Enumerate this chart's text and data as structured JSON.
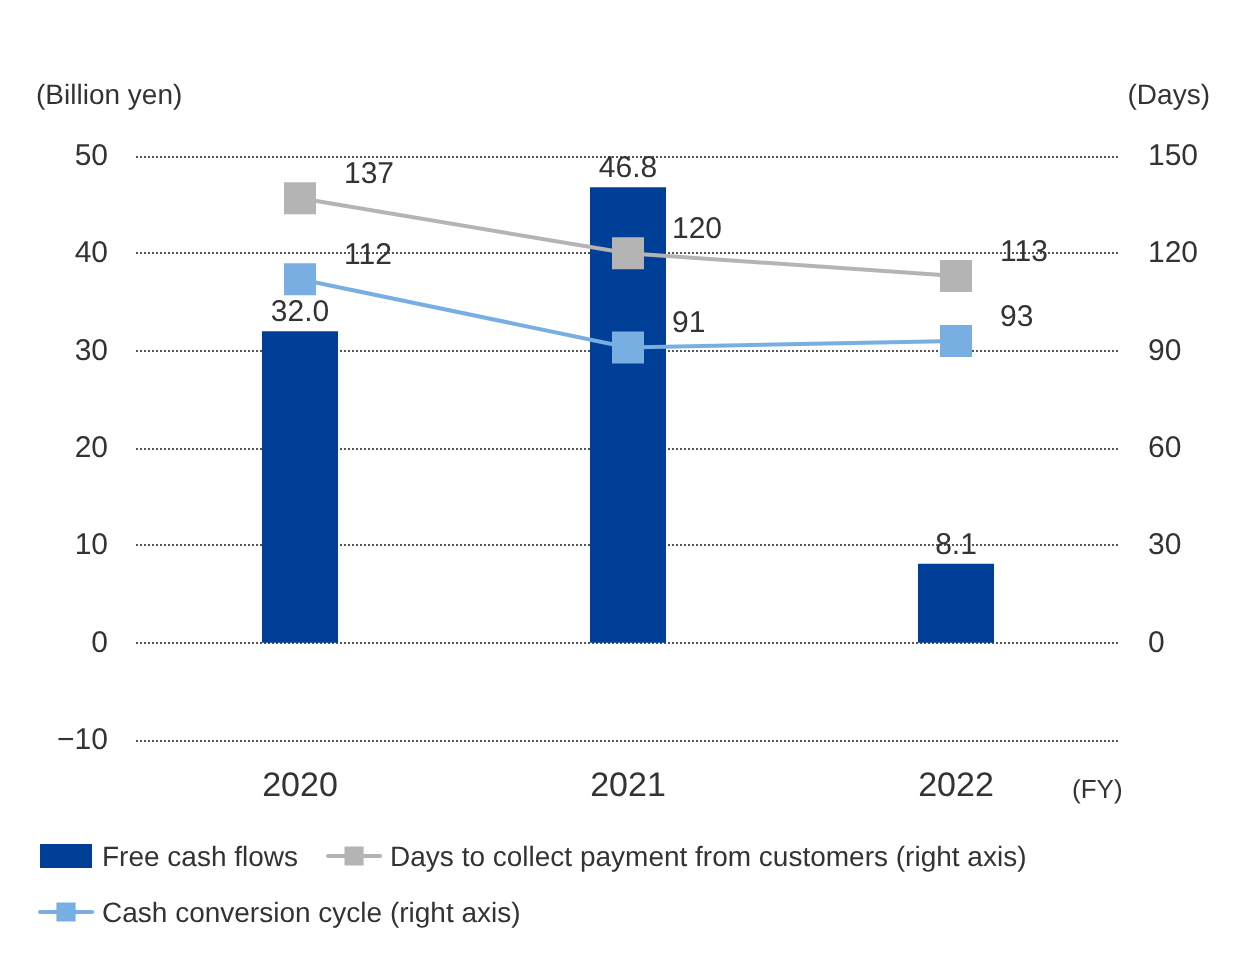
{
  "chart_data": {
    "type": "bar",
    "ylabel": "(Billion yen)",
    "y2label": "(Days)",
    "xlabel": "(FY)",
    "categories": [
      "2020",
      "2021",
      "2022"
    ],
    "series": [
      {
        "name": "Free cash flows",
        "color": "#003f98",
        "values": [
          32.0,
          46.8,
          8.1
        ],
        "value_labels": [
          "32.0",
          "46.8",
          "8.1"
        ]
      },
      {
        "name": "Days to collect payment from customers (right axis)",
        "type": "line",
        "axis": "y2",
        "color": "#b4b4b4",
        "values": [
          137,
          120,
          113
        ],
        "value_labels": [
          "137",
          "120",
          "113"
        ]
      },
      {
        "name": "Cash conversion cycle (right axis)",
        "type": "line",
        "axis": "y2",
        "color": "#78aee2",
        "values": [
          112,
          91,
          93
        ],
        "value_labels": [
          "112",
          "91",
          "93"
        ]
      }
    ],
    "ylim": [
      -10,
      50
    ],
    "yticks": [
      {
        "value": -10,
        "label": "−10"
      },
      0,
      10,
      20,
      30,
      40,
      50
    ],
    "y2lim": [
      -30,
      150
    ],
    "y2ticks": [
      0,
      30,
      60,
      90,
      120,
      150
    ],
    "grid": "y",
    "legend": "bottom",
    "marker": "square",
    "line_style": "solid"
  }
}
